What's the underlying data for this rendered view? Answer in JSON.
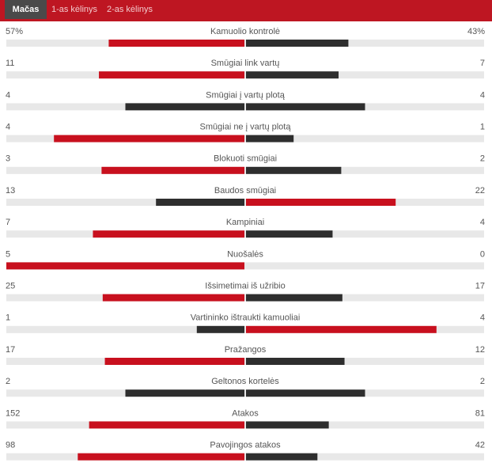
{
  "tabs": [
    "Mačas",
    "1-as kėlinys",
    "2-as kėlinys"
  ],
  "active_tab": 0,
  "colors": {
    "header": "#be1622",
    "active_tab": "#4a4a4a",
    "leader": "#c8101e",
    "other": "#2e2e2e",
    "track": "#e8e8e8"
  },
  "stats": [
    {
      "label": "Kamuolio kontrolė",
      "home": {
        "value": 57,
        "label": "57%"
      },
      "away": {
        "value": 43,
        "label": "43%"
      }
    },
    {
      "label": "Smūgiai link vartų",
      "home": 11,
      "away": 7
    },
    {
      "label": "Smūgiai į vartų plotą",
      "home": 4,
      "away": 4
    },
    {
      "label": "Smūgiai ne į vartų plotą",
      "home": 4,
      "away": 1
    },
    {
      "label": "Blokuoti smūgiai",
      "home": 3,
      "away": 2
    },
    {
      "label": "Baudos smūgiai",
      "home": 13,
      "away": 22
    },
    {
      "label": "Kampiniai",
      "home": 7,
      "away": 4
    },
    {
      "label": "Nuošalės",
      "home": 5,
      "away": 0
    },
    {
      "label": "Išsimetimai iš užribio",
      "home": 25,
      "away": 17
    },
    {
      "label": "Vartininko ištraukti kamuoliai",
      "home": 1,
      "away": 4
    },
    {
      "label": "Pražangos",
      "home": 17,
      "away": 12
    },
    {
      "label": "Geltonos kortelės",
      "home": 2,
      "away": 2
    },
    {
      "label": "Atakos",
      "home": 152,
      "away": 81
    },
    {
      "label": "Pavojingos atakos",
      "home": 98,
      "away": 42
    }
  ]
}
